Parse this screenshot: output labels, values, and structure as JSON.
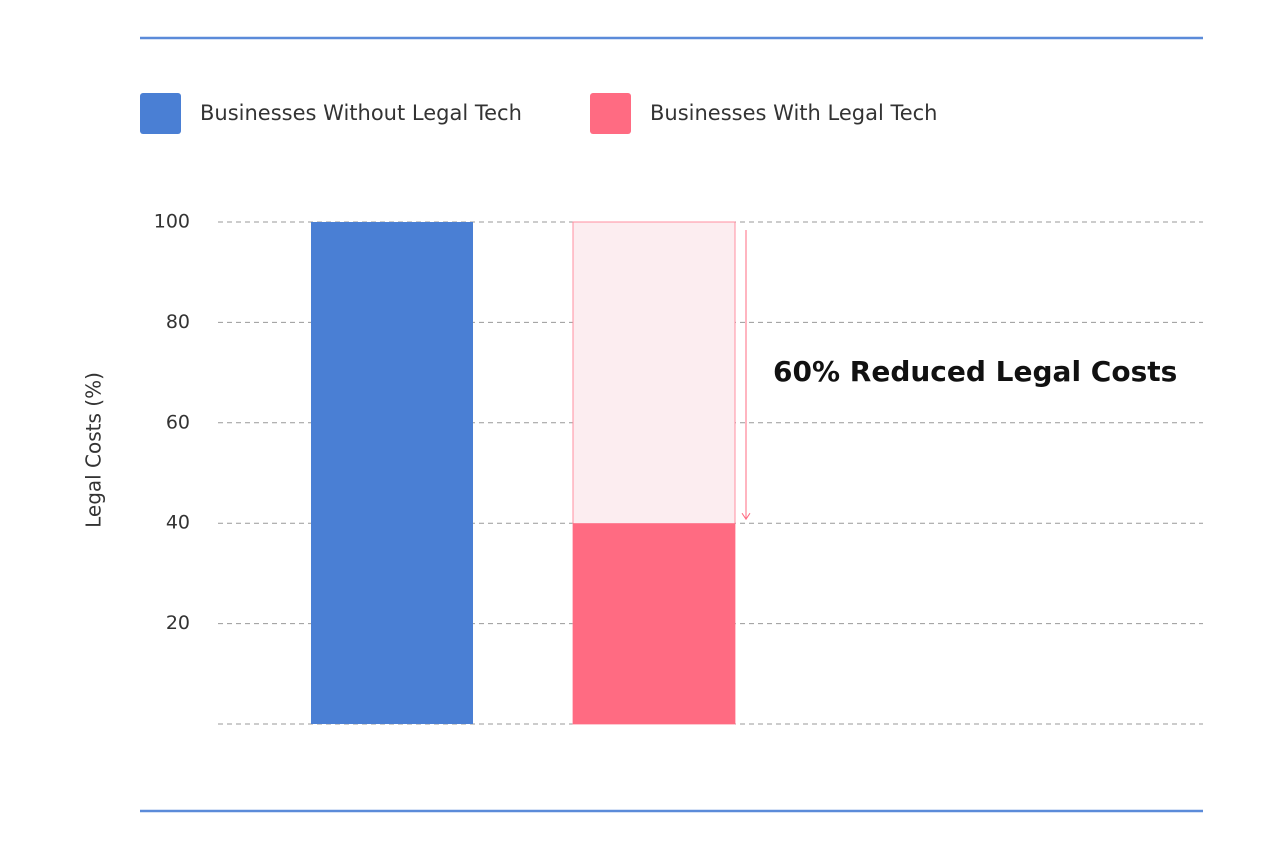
{
  "chart_data": {
    "type": "bar",
    "y_label": "Legal Costs (%)",
    "annotation": "60% Reduced Legal Costs",
    "categories": [
      null,
      null
    ],
    "series": [
      {
        "name": "Businesses Without Legal Tech",
        "color": "#4a7fd4",
        "values": [
          100,
          null
        ]
      },
      {
        "name": "Businesses With Legal Tech",
        "color": "#ff6b82",
        "values": [
          null,
          40
        ]
      }
    ],
    "ylim": [
      0,
      100
    ],
    "yticks": [
      20,
      40,
      60,
      80,
      100
    ],
    "grid": true
  }
}
